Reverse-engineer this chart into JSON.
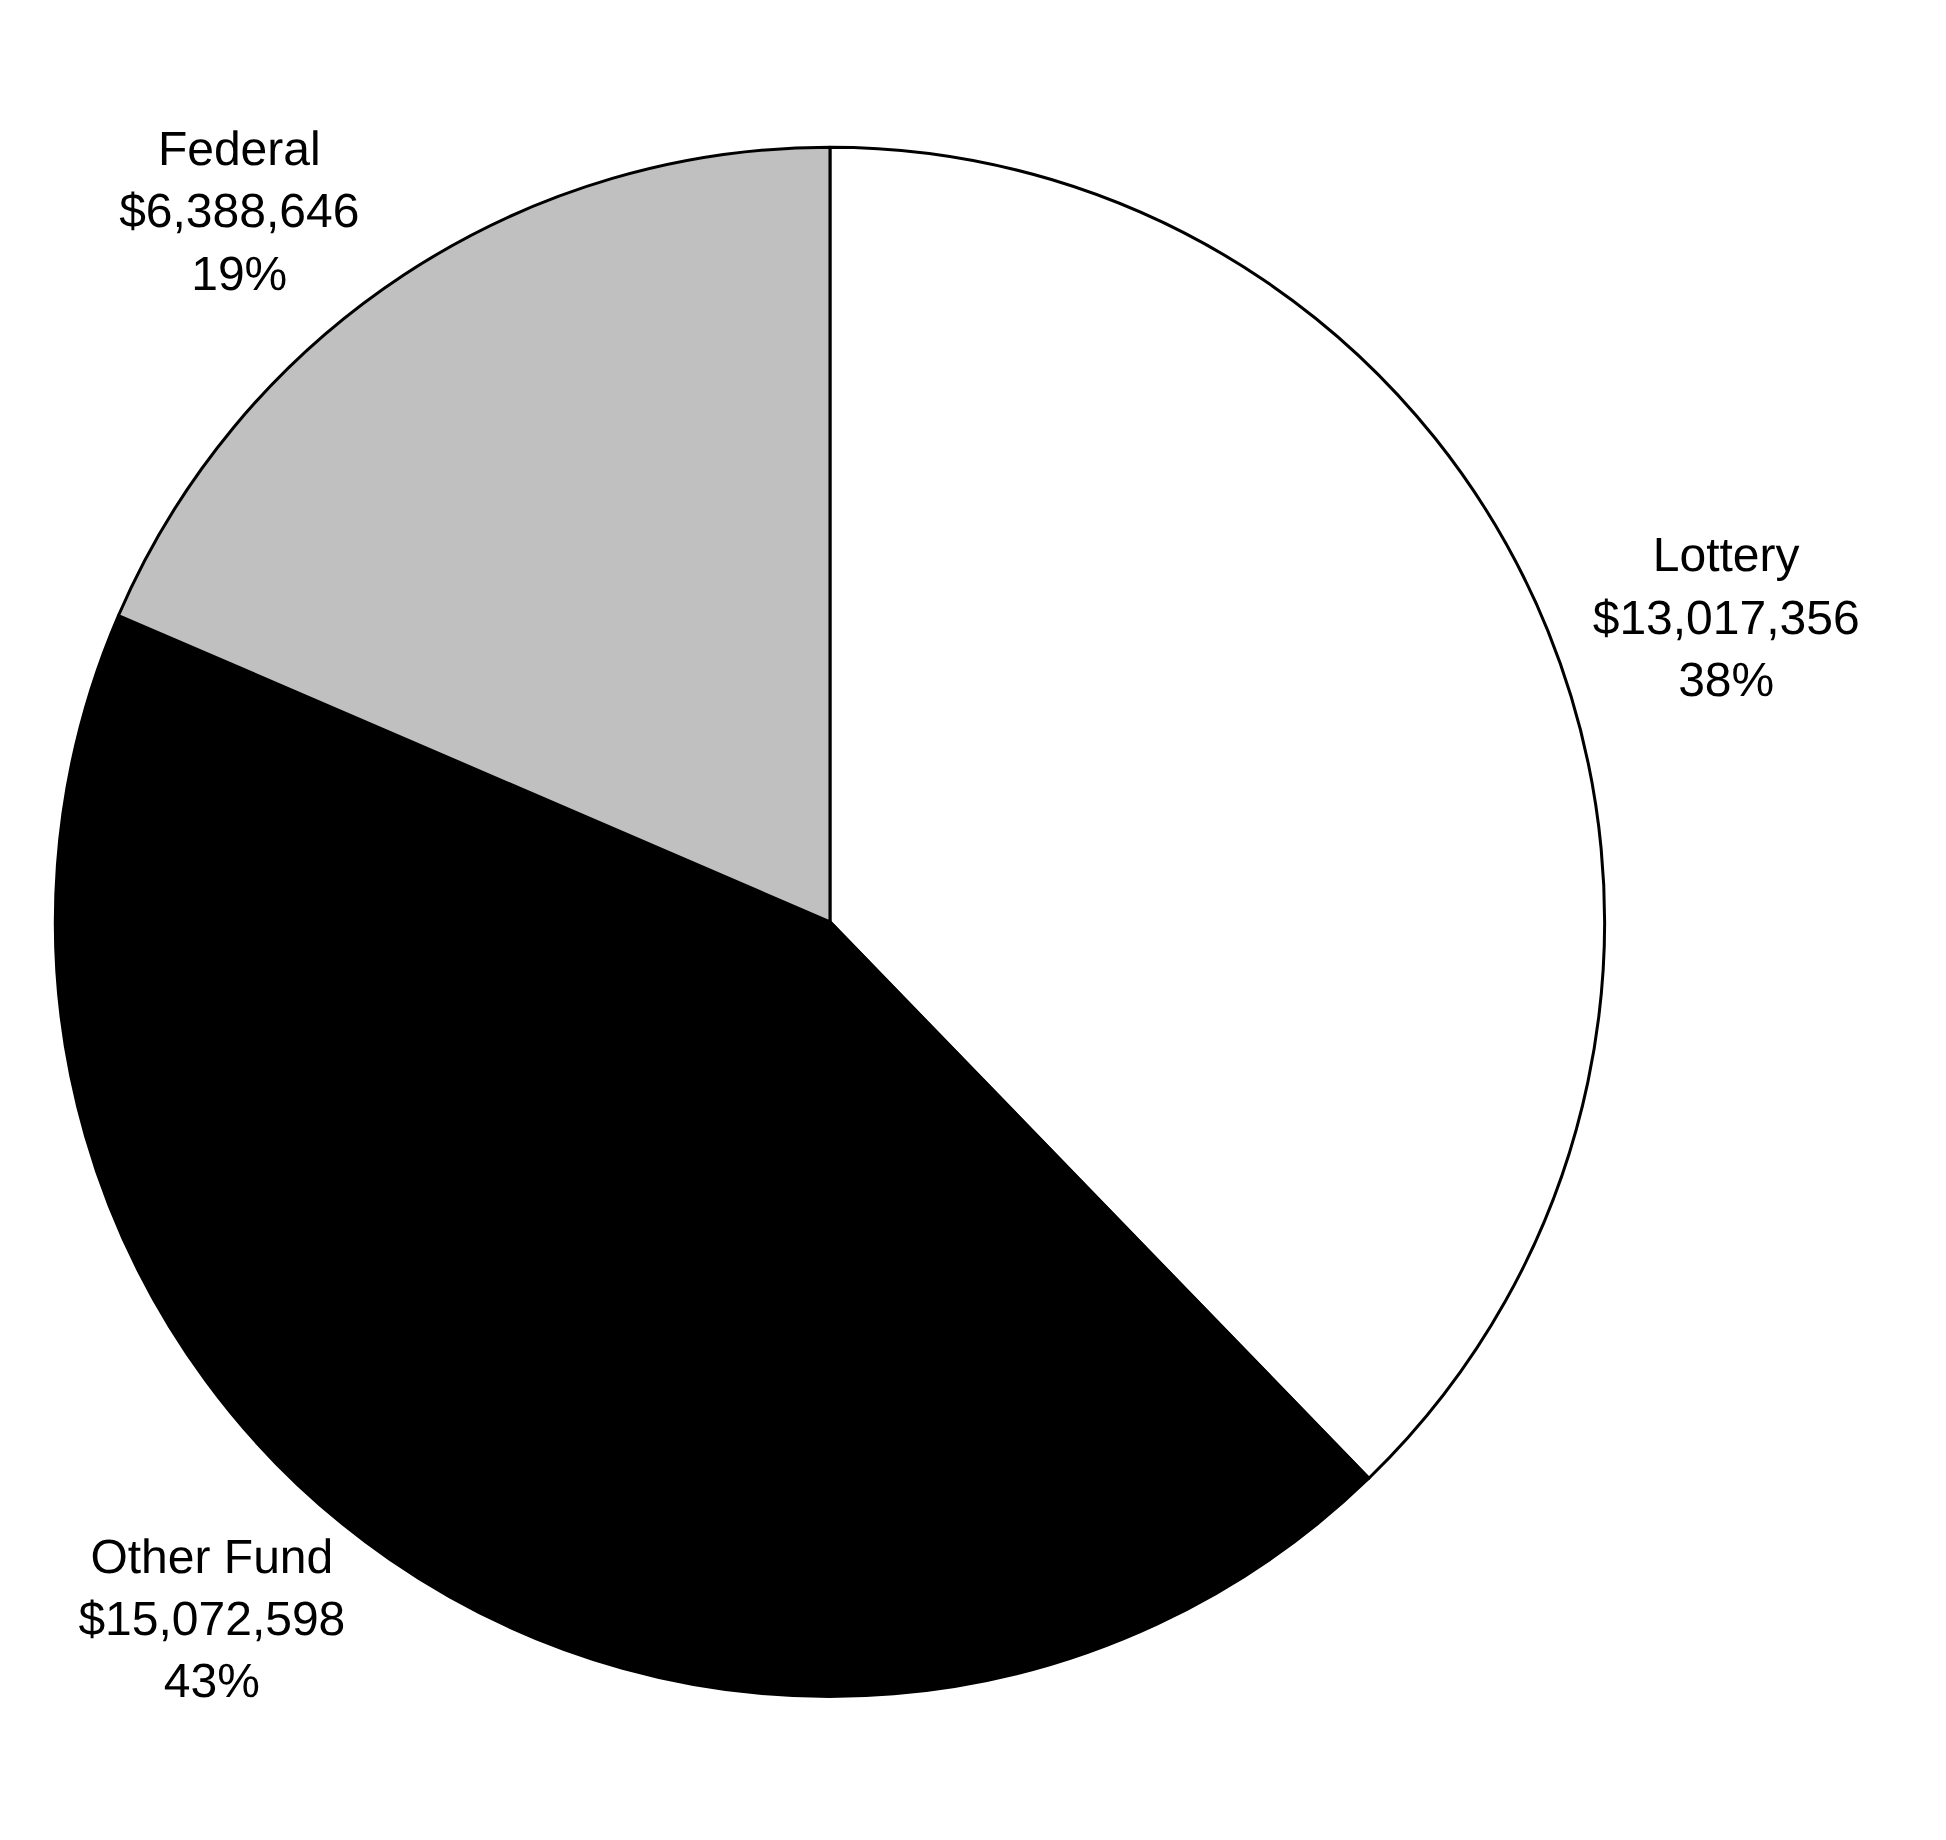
{
  "chart_data": {
    "type": "pie",
    "categories": [
      "Lottery",
      "Other Fund",
      "Federal"
    ],
    "values": [
      13017356,
      15072598,
      6388646
    ],
    "colors": [
      "#ffffff",
      "#000000",
      "#c0c0c0"
    ],
    "value_labels": [
      "$13,017,356\n38%",
      "$15,072,598\n43%",
      "$6,388,646\n19%"
    ],
    "legend": false
  }
}
